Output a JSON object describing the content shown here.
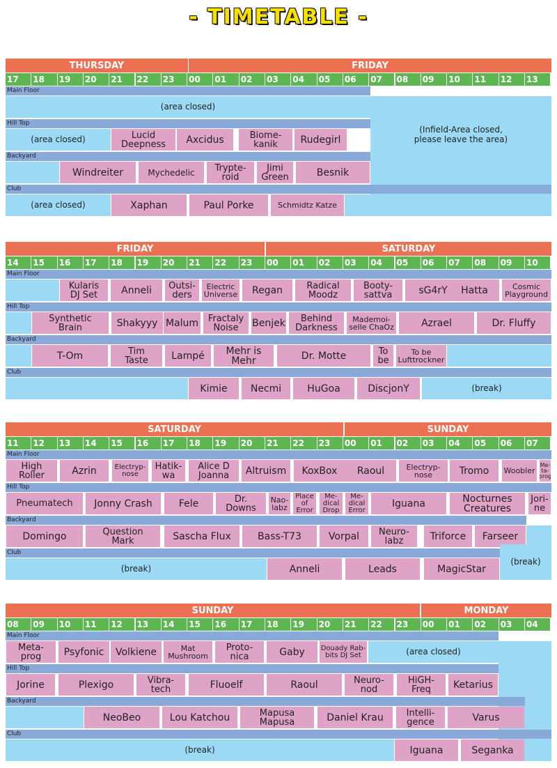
{
  "title": "- TIMETABLE -",
  "stages": [
    "Main Floor",
    "Hill Top",
    "Backyard",
    "Club"
  ],
  "blocks": [
    {
      "days": [
        "THURSDAY",
        "FRIDAY"
      ],
      "hours": [
        "17",
        "18",
        "19",
        "20",
        "21",
        "22",
        "23",
        "00",
        "01",
        "02",
        "03",
        "04",
        "05",
        "06",
        "07",
        "08",
        "09",
        "10",
        "11",
        "12",
        "13"
      ],
      "notes": [
        "(area closed)",
        "(area closed)",
        "(Infield-Area closed,\nplease leave the area)",
        "(area closed)"
      ],
      "acts": {
        "hill_top": [
          "Lucid\nDeepness",
          "Axcidus",
          "Biome-\nkanik",
          "Rudegirl"
        ],
        "backyard": [
          "Windreiter",
          "Mychedelic",
          "Trypte-\nroid",
          "Jimi\nGreen",
          "Besnik"
        ],
        "club": [
          "Xaphan",
          "Paul Porke",
          "Schmidtz Katze"
        ]
      }
    },
    {
      "days": [
        "FRIDAY",
        "SATURDAY"
      ],
      "hours": [
        "14",
        "15",
        "16",
        "17",
        "18",
        "19",
        "20",
        "21",
        "22",
        "23",
        "00",
        "01",
        "02",
        "03",
        "04",
        "05",
        "06",
        "07",
        "08",
        "09",
        "10"
      ],
      "acts": {
        "main_floor": [
          "Kularis\nDJ Set",
          "Anneli",
          "Outsi-\nders",
          "Electric\nUniverse",
          "Regan",
          "Radical\nMoodz",
          "Booty-\nsattva",
          "sG4rY",
          "Hatta",
          "Cosmic\nPlayground"
        ],
        "hill_top": [
          "Synthetic\nBrain",
          "Shakyyy",
          "Malum",
          "Fractaly\nNoise",
          "Benjek",
          "Behind\nDarkness",
          "Mademoi-\nselle ChaOz",
          "Azrael",
          "Dr. Fluffy"
        ],
        "backyard": [
          "T-Om",
          "Tim\nTaste",
          "Lampé",
          "Mehr is Mehr",
          "Dr. Motte",
          "To\nbe",
          "To be\nLufttrockner"
        ],
        "club": [
          "Kimie",
          "Necmi",
          "HuGoa",
          "DiscjonY"
        ]
      },
      "notes": [
        "(break)"
      ]
    },
    {
      "days": [
        "SATURDAY",
        "SUNDAY"
      ],
      "hours": [
        "11",
        "12",
        "13",
        "14",
        "15",
        "16",
        "17",
        "18",
        "19",
        "20",
        "21",
        "22",
        "23",
        "00",
        "01",
        "02",
        "03",
        "04",
        "05",
        "06",
        "07"
      ],
      "acts": {
        "main_floor": [
          "High\nRoller",
          "Azrin",
          "Electryp-\nnose",
          "Hatik-\nwa",
          "Alice D\nJoanna",
          "Altruism",
          "KoxBox",
          "Raoul",
          "Electryp-\nnose",
          "Tromo",
          "Woobler",
          "Me-\nta-\nprog"
        ],
        "hill_top": [
          "Pneumatech",
          "Jonny Crash",
          "Fele",
          "Dr.\nDowns",
          "Nao-\nlabz",
          "Place\nof\nError",
          "Me-\ndical\nDrop",
          "Me-\ndical\nError",
          "Iguana",
          "Nocturnes\nCreatures",
          "Jori-\nne"
        ],
        "backyard": [
          "Domingo",
          "Question\nMark",
          "Sascha Flux",
          "Bass-T73",
          "Vorpal",
          "Neuro-\nlabz",
          "Triforce",
          "Farseer"
        ],
        "club": [
          "Anneli",
          "Leads",
          "MagicStar"
        ]
      },
      "notes": [
        "(break)",
        "(break)"
      ]
    },
    {
      "days": [
        "SUNDAY",
        "MONDAY"
      ],
      "hours": [
        "08",
        "09",
        "10",
        "11",
        "12",
        "13",
        "14",
        "15",
        "16",
        "17",
        "18",
        "19",
        "20",
        "21",
        "22",
        "23",
        "00",
        "01",
        "02",
        "03",
        "04"
      ],
      "acts": {
        "main_floor": [
          "Meta-\nprog",
          "Psyfonic",
          "Volkiene",
          "Mat\nMushroom",
          "Proto-\nnica",
          "Gaby",
          "Douady Rab-\nbits DJ Set"
        ],
        "hill_top": [
          "Jorine",
          "Plexigo",
          "Vibra-\ntech",
          "Fluoelf",
          "Raoul",
          "Neuro-\nnod",
          "HiGH-\nFreq",
          "Ketarius"
        ],
        "backyard": [
          "NeoBeo",
          "Lou Katchou",
          "Mapusa\nMapusa",
          "Daniel Krau",
          "Intelli-\ngence",
          "Varus"
        ],
        "club": [
          "Iguana",
          "Seganka"
        ]
      },
      "notes": [
        "(area closed)",
        "(break)"
      ]
    }
  ]
}
